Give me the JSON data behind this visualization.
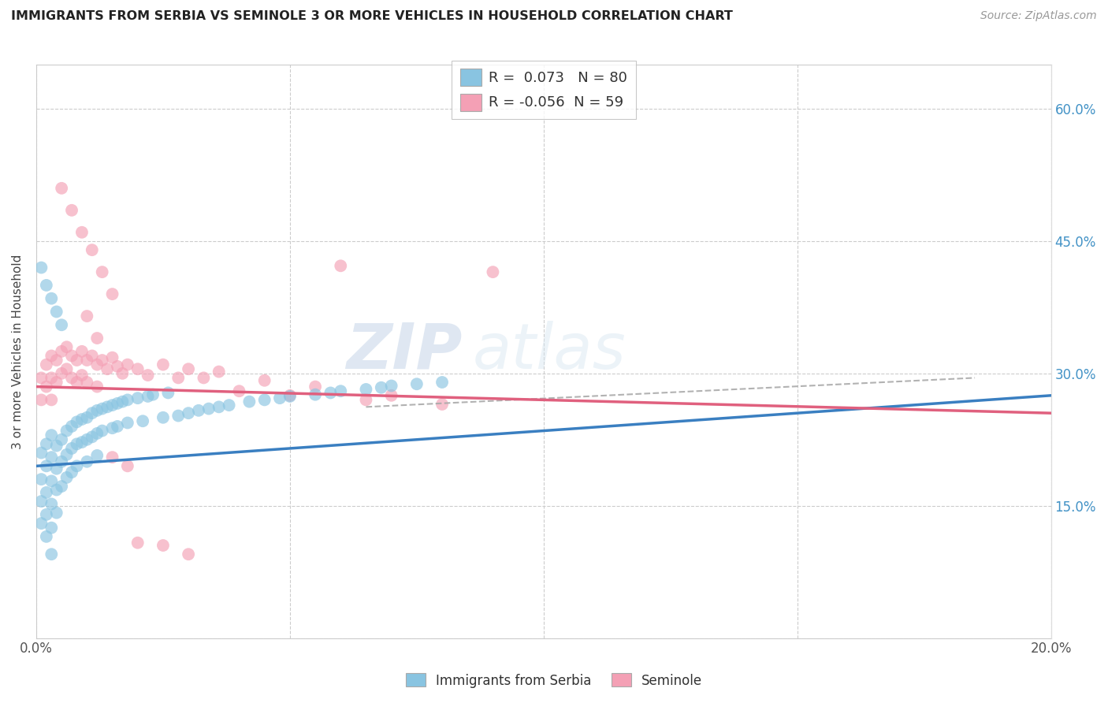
{
  "title": "IMMIGRANTS FROM SERBIA VS SEMINOLE 3 OR MORE VEHICLES IN HOUSEHOLD CORRELATION CHART",
  "source": "Source: ZipAtlas.com",
  "ylabel": "3 or more Vehicles in Household",
  "xlim": [
    0.0,
    0.2
  ],
  "ylim": [
    0.0,
    0.65
  ],
  "legend_label1": "Immigrants from Serbia",
  "legend_label2": "Seminole",
  "R1": 0.073,
  "N1": 80,
  "R2": -0.056,
  "N2": 59,
  "blue_color": "#89c4e1",
  "pink_color": "#f4a0b5",
  "blue_line_color": "#3a7fc1",
  "pink_line_color": "#e0607e",
  "watermark_zip": "ZIP",
  "watermark_atlas": "atlas",
  "blue_line_x0": 0.0,
  "blue_line_y0": 0.195,
  "blue_line_x1": 0.2,
  "blue_line_y1": 0.275,
  "pink_line_x0": 0.0,
  "pink_line_y0": 0.285,
  "pink_line_x1": 0.2,
  "pink_line_y1": 0.255,
  "dash_line_x0": 0.065,
  "dash_line_y0": 0.262,
  "dash_line_x1": 0.185,
  "dash_line_y1": 0.295,
  "blue_scatter_x": [
    0.001,
    0.001,
    0.001,
    0.001,
    0.002,
    0.002,
    0.002,
    0.002,
    0.002,
    0.003,
    0.003,
    0.003,
    0.003,
    0.003,
    0.003,
    0.004,
    0.004,
    0.004,
    0.004,
    0.005,
    0.005,
    0.005,
    0.006,
    0.006,
    0.006,
    0.007,
    0.007,
    0.007,
    0.008,
    0.008,
    0.008,
    0.009,
    0.009,
    0.01,
    0.01,
    0.01,
    0.011,
    0.011,
    0.012,
    0.012,
    0.012,
    0.013,
    0.013,
    0.014,
    0.015,
    0.015,
    0.016,
    0.016,
    0.017,
    0.018,
    0.018,
    0.02,
    0.021,
    0.022,
    0.023,
    0.025,
    0.026,
    0.028,
    0.03,
    0.032,
    0.034,
    0.036,
    0.038,
    0.042,
    0.045,
    0.048,
    0.05,
    0.055,
    0.058,
    0.06,
    0.065,
    0.068,
    0.07,
    0.075,
    0.08,
    0.001,
    0.002,
    0.003,
    0.004,
    0.005
  ],
  "blue_scatter_y": [
    0.21,
    0.18,
    0.155,
    0.13,
    0.22,
    0.195,
    0.165,
    0.14,
    0.115,
    0.23,
    0.205,
    0.178,
    0.152,
    0.125,
    0.095,
    0.218,
    0.192,
    0.168,
    0.142,
    0.225,
    0.2,
    0.172,
    0.235,
    0.208,
    0.182,
    0.24,
    0.215,
    0.188,
    0.245,
    0.22,
    0.195,
    0.248,
    0.222,
    0.25,
    0.225,
    0.2,
    0.255,
    0.228,
    0.258,
    0.232,
    0.207,
    0.26,
    0.235,
    0.262,
    0.264,
    0.238,
    0.266,
    0.24,
    0.268,
    0.27,
    0.244,
    0.272,
    0.246,
    0.274,
    0.276,
    0.25,
    0.278,
    0.252,
    0.255,
    0.258,
    0.26,
    0.262,
    0.264,
    0.268,
    0.27,
    0.272,
    0.274,
    0.276,
    0.278,
    0.28,
    0.282,
    0.284,
    0.286,
    0.288,
    0.29,
    0.42,
    0.4,
    0.385,
    0.37,
    0.355
  ],
  "pink_scatter_x": [
    0.001,
    0.001,
    0.002,
    0.002,
    0.003,
    0.003,
    0.003,
    0.004,
    0.004,
    0.005,
    0.005,
    0.006,
    0.006,
    0.007,
    0.007,
    0.008,
    0.008,
    0.009,
    0.009,
    0.01,
    0.01,
    0.011,
    0.012,
    0.012,
    0.013,
    0.014,
    0.015,
    0.016,
    0.017,
    0.018,
    0.02,
    0.022,
    0.025,
    0.028,
    0.03,
    0.033,
    0.036,
    0.04,
    0.045,
    0.05,
    0.055,
    0.06,
    0.065,
    0.07,
    0.08,
    0.09,
    0.01,
    0.012,
    0.015,
    0.018,
    0.02,
    0.025,
    0.03,
    0.005,
    0.007,
    0.009,
    0.011,
    0.013,
    0.015
  ],
  "pink_scatter_y": [
    0.295,
    0.27,
    0.31,
    0.285,
    0.32,
    0.295,
    0.27,
    0.315,
    0.29,
    0.325,
    0.3,
    0.33,
    0.305,
    0.32,
    0.295,
    0.315,
    0.29,
    0.325,
    0.298,
    0.315,
    0.29,
    0.32,
    0.31,
    0.285,
    0.315,
    0.305,
    0.318,
    0.308,
    0.3,
    0.31,
    0.305,
    0.298,
    0.31,
    0.295,
    0.305,
    0.295,
    0.302,
    0.28,
    0.292,
    0.275,
    0.285,
    0.422,
    0.27,
    0.275,
    0.265,
    0.415,
    0.365,
    0.34,
    0.205,
    0.195,
    0.108,
    0.105,
    0.095,
    0.51,
    0.485,
    0.46,
    0.44,
    0.415,
    0.39
  ]
}
